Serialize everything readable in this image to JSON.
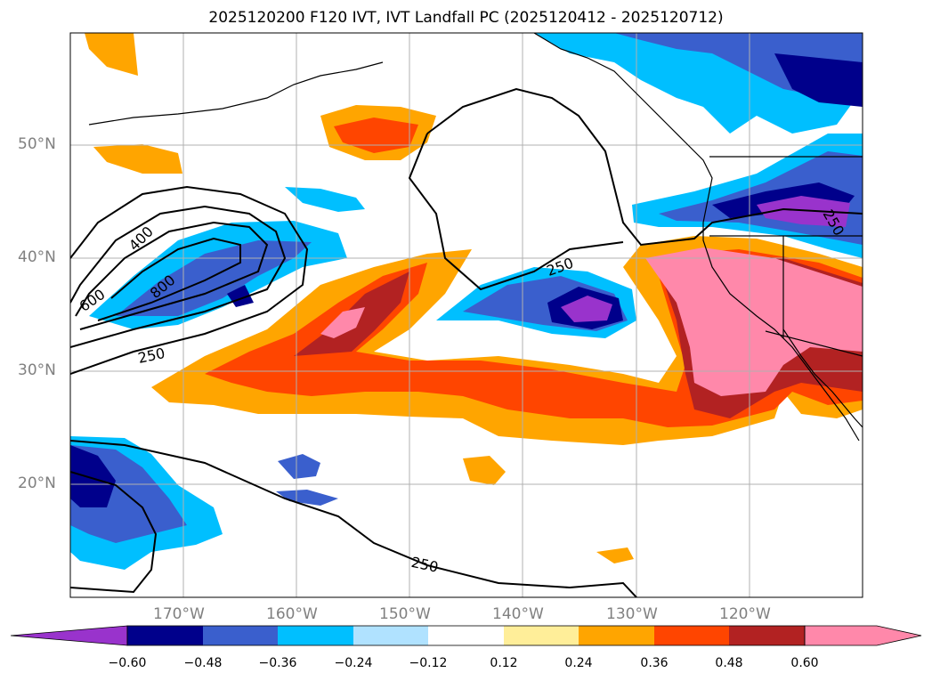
{
  "title": "2025120200 F120 IVT, IVT Landfall PC (2025120412 - 2025120712)",
  "lat_labels": [
    "50°N",
    "40°N",
    "30°N",
    "20°N"
  ],
  "lon_labels": [
    "170°W",
    "160°W",
    "150°W",
    "140°W",
    "130°W",
    "120°W"
  ],
  "contour_labels": [
    "400",
    "600",
    "800",
    "250",
    "250",
    "250",
    "250"
  ],
  "colorbar": {
    "tick_labels": [
      "−0.60",
      "−0.48",
      "−0.36",
      "−0.24",
      "−0.12",
      "0.12",
      "0.24",
      "0.36",
      "0.48",
      "0.60"
    ],
    "colors": [
      "#9933cc",
      "#00008b",
      "#3a5fcd",
      "#00bfff",
      "#b0e2ff",
      "#ffffff",
      "#ffee99",
      "#ffa500",
      "#ff4500",
      "#b22222",
      "#ff88aa"
    ]
  }
}
